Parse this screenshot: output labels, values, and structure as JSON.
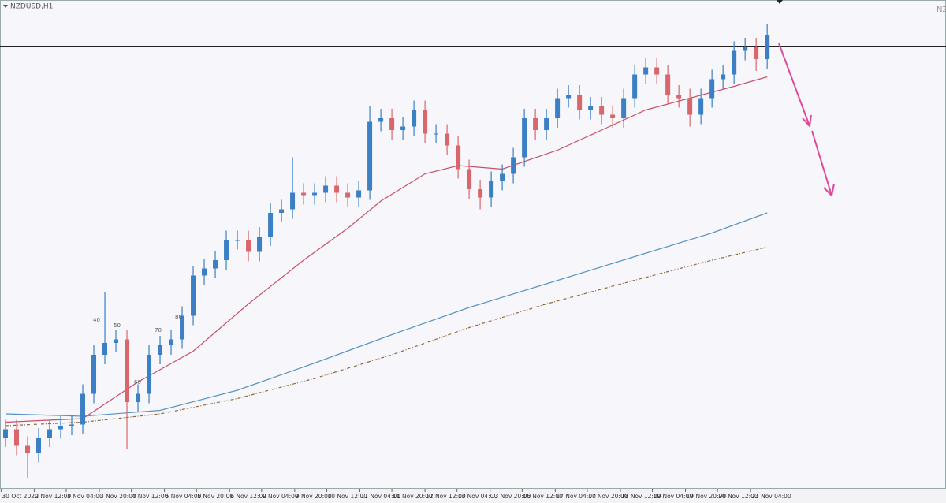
{
  "chart_data": {
    "type": "candlestick",
    "title": "NZDUSD,H1",
    "corner_text": "NZ",
    "annotations": [
      "40",
      "50",
      "70",
      "80",
      "60"
    ],
    "up_color": "#3b7fc4",
    "down_color": "#d9666b",
    "xlim": [
      -0.5,
      85.2
    ],
    "ylim": [
      0.658,
      0.699
    ],
    "xticks": [
      {
        "value": -0.4,
        "label": "30 Oct 2020"
      },
      {
        "value": 2.6,
        "label": "2 Nov 12:00"
      },
      {
        "value": 5.5,
        "label": "3 Nov 04:00"
      },
      {
        "value": 8.5,
        "label": "3 Nov 20:00"
      },
      {
        "value": 11.4,
        "label": "4 Nov 12:00"
      },
      {
        "value": 14.4,
        "label": "5 Nov 04:00"
      },
      {
        "value": 17.3,
        "label": "5 Nov 20:00"
      },
      {
        "value": 20.3,
        "label": "6 Nov 12:00"
      },
      {
        "value": 23.2,
        "label": "9 Nov 04:00"
      },
      {
        "value": 26.2,
        "label": "9 Nov 20:00"
      },
      {
        "value": 29.1,
        "label": "10 Nov 12:00"
      },
      {
        "value": 32.1,
        "label": "11 Nov 04:00"
      },
      {
        "value": 35.0,
        "label": "11 Nov 20:00"
      },
      {
        "value": 38.0,
        "label": "12 Nov 12:00"
      },
      {
        "value": 40.9,
        "label": "13 Nov 04:00"
      },
      {
        "value": 43.9,
        "label": "13 Nov 20:00"
      },
      {
        "value": 46.8,
        "label": "16 Nov 12:00"
      },
      {
        "value": 49.8,
        "label": "17 Nov 04:00"
      },
      {
        "value": 52.7,
        "label": "17 Nov 20:00"
      },
      {
        "value": 55.7,
        "label": "18 Nov 12:00"
      },
      {
        "value": 58.6,
        "label": "19 Nov 04:00"
      },
      {
        "value": 61.6,
        "label": "19 Nov 20:00"
      },
      {
        "value": 64.5,
        "label": "20 Nov 12:00"
      },
      {
        "value": 67.5,
        "label": "23 Nov 04:00"
      }
    ],
    "open": [
      0.662,
      0.6627,
      0.6613,
      0.6607,
      0.662,
      0.6627,
      0.663,
      0.6631,
      0.6657,
      0.669,
      0.67,
      0.6703,
      0.665,
      0.6657,
      0.669,
      0.6698,
      0.6703,
      0.6723,
      0.6757,
      0.6763,
      0.677,
      0.6787,
      0.6787,
      0.6777,
      0.679,
      0.681,
      0.6813,
      0.6827,
      0.6825,
      0.6827,
      0.6833,
      0.6827,
      0.6823,
      0.6829,
      0.6887,
      0.689,
      0.688,
      0.6883,
      0.6897,
      0.6877,
      0.6877,
      0.6867,
      0.6847,
      0.683,
      0.6823,
      0.6837,
      0.6843,
      0.6857,
      0.689,
      0.688,
      0.689,
      0.6907,
      0.691,
      0.6897,
      0.69,
      0.6893,
      0.689,
      0.6907,
      0.6927,
      0.6933,
      0.6927,
      0.691,
      0.6907,
      0.6893,
      0.6907,
      0.6923,
      0.6927,
      0.6947,
      0.695,
      0.694
    ],
    "high": [
      0.6635,
      0.6635,
      0.6621,
      0.6628,
      0.6635,
      0.6638,
      0.6639,
      0.6665,
      0.6698,
      0.6743,
      0.6711,
      0.6711,
      0.6665,
      0.6698,
      0.6706,
      0.6711,
      0.6731,
      0.6765,
      0.6771,
      0.6778,
      0.6795,
      0.6795,
      0.6795,
      0.6798,
      0.6818,
      0.6821,
      0.6857,
      0.6835,
      0.6835,
      0.6841,
      0.6841,
      0.6835,
      0.6837,
      0.69,
      0.6898,
      0.6898,
      0.6891,
      0.6905,
      0.6905,
      0.6885,
      0.6885,
      0.6875,
      0.6855,
      0.6838,
      0.6845,
      0.6851,
      0.6865,
      0.6898,
      0.6898,
      0.6898,
      0.6915,
      0.6918,
      0.6918,
      0.6908,
      0.6908,
      0.6901,
      0.6915,
      0.6935,
      0.6941,
      0.6941,
      0.6935,
      0.6918,
      0.6915,
      0.6915,
      0.6931,
      0.6935,
      0.6955,
      0.6958,
      0.6958,
      0.697
    ],
    "low": [
      0.6612,
      0.6605,
      0.6586,
      0.6599,
      0.6612,
      0.6619,
      0.6622,
      0.6623,
      0.6649,
      0.6682,
      0.6692,
      0.661,
      0.6642,
      0.6649,
      0.6682,
      0.669,
      0.6695,
      0.6715,
      0.6749,
      0.6755,
      0.6762,
      0.6779,
      0.6769,
      0.6769,
      0.6782,
      0.6802,
      0.6805,
      0.6817,
      0.6817,
      0.6819,
      0.6819,
      0.6815,
      0.6815,
      0.6821,
      0.6879,
      0.6872,
      0.6872,
      0.6875,
      0.6869,
      0.6869,
      0.6859,
      0.6839,
      0.6822,
      0.6813,
      0.6815,
      0.6829,
      0.6835,
      0.6849,
      0.6872,
      0.6872,
      0.6882,
      0.6899,
      0.6889,
      0.6889,
      0.6885,
      0.6882,
      0.6882,
      0.6899,
      0.6919,
      0.6919,
      0.6902,
      0.6899,
      0.6883,
      0.6885,
      0.6899,
      0.6915,
      0.6919,
      0.6939,
      0.693,
      0.6932
    ],
    "close": [
      0.6627,
      0.6613,
      0.6607,
      0.662,
      0.6627,
      0.663,
      0.6631,
      0.6657,
      0.669,
      0.67,
      0.6703,
      0.665,
      0.6657,
      0.669,
      0.6698,
      0.6703,
      0.6723,
      0.6757,
      0.6763,
      0.677,
      0.6787,
      0.6787,
      0.6777,
      0.679,
      0.681,
      0.6813,
      0.6827,
      0.6825,
      0.6827,
      0.6833,
      0.6827,
      0.6823,
      0.6829,
      0.6887,
      0.689,
      0.688,
      0.6883,
      0.6897,
      0.6877,
      0.6877,
      0.6867,
      0.6847,
      0.683,
      0.6823,
      0.6837,
      0.6843,
      0.6857,
      0.689,
      0.688,
      0.689,
      0.6907,
      0.691,
      0.6897,
      0.69,
      0.6893,
      0.689,
      0.6907,
      0.6927,
      0.6933,
      0.6927,
      0.691,
      0.6907,
      0.6893,
      0.6907,
      0.6923,
      0.6927,
      0.6947,
      0.695,
      0.694,
      0.696
    ],
    "lines": [
      {
        "color": "#c8506a",
        "dash": "none",
        "x": [
          0,
          7,
          12,
          17,
          22,
          27,
          31,
          34,
          38,
          41,
          45,
          50,
          54,
          58,
          62,
          66,
          69
        ],
        "values": [
          0.6633,
          0.6636,
          0.6667,
          0.6693,
          0.6733,
          0.677,
          0.6797,
          0.682,
          0.6843,
          0.685,
          0.6847,
          0.6863,
          0.688,
          0.6897,
          0.6907,
          0.6917,
          0.6925
        ]
      },
      {
        "color": "#5a93bf",
        "dash": "none",
        "x": [
          0,
          7,
          14,
          21,
          28,
          35,
          42,
          49,
          57,
          64,
          69
        ],
        "values": [
          0.664,
          0.6638,
          0.6643,
          0.666,
          0.6683,
          0.6707,
          0.673,
          0.675,
          0.6773,
          0.6793,
          0.681
        ]
      },
      {
        "color": "#8a6a3a",
        "dash": "4 2 1 2",
        "x": [
          0,
          7,
          14,
          21,
          28,
          35,
          42,
          49,
          57,
          64,
          69
        ],
        "values": [
          0.663,
          0.6633,
          0.664,
          0.6653,
          0.667,
          0.669,
          0.6713,
          0.6733,
          0.6753,
          0.677,
          0.6781
        ]
      }
    ],
    "hline": 0.6951,
    "hline_color": "#222"
  }
}
